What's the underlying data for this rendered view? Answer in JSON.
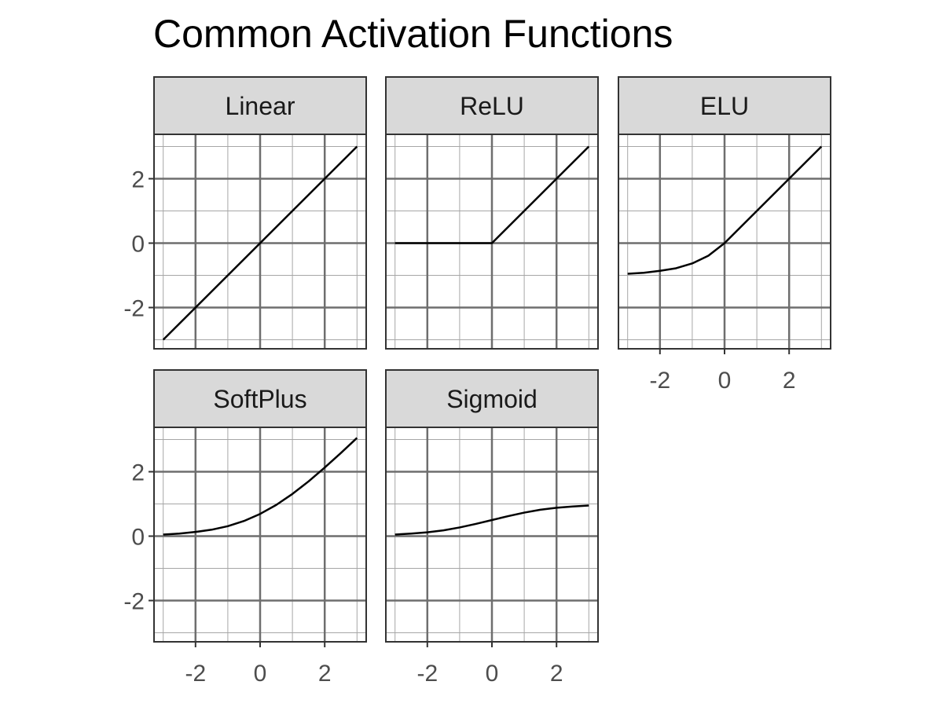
{
  "chart_data": {
    "type": "line",
    "title": "Common Activation Functions",
    "xlabel": "",
    "ylabel": "",
    "xlim": [
      -3,
      3
    ],
    "ylim": [
      -3,
      3
    ],
    "x_ticks": [
      "-2",
      "0",
      "2"
    ],
    "y_ticks": [
      "2",
      "0",
      "-2"
    ],
    "grid": true,
    "legend": "none",
    "line_color": "#000000",
    "panels": [
      {
        "name": "Linear",
        "x": [
          -3,
          -2.5,
          -2,
          -1.5,
          -1,
          -0.5,
          0,
          0.5,
          1,
          1.5,
          2,
          2.5,
          3
        ],
        "y": [
          -3,
          -2.5,
          -2,
          -1.5,
          -1,
          -0.5,
          0,
          0.5,
          1,
          1.5,
          2,
          2.5,
          3
        ]
      },
      {
        "name": "ReLU",
        "x": [
          -3,
          -2.5,
          -2,
          -1.5,
          -1,
          -0.5,
          0,
          0.5,
          1,
          1.5,
          2,
          2.5,
          3
        ],
        "y": [
          0,
          0,
          0,
          0,
          0,
          0,
          0,
          0.5,
          1,
          1.5,
          2,
          2.5,
          3
        ]
      },
      {
        "name": "ELU",
        "x": [
          -3,
          -2.5,
          -2,
          -1.5,
          -1,
          -0.5,
          0,
          0.5,
          1,
          1.5,
          2,
          2.5,
          3
        ],
        "y": [
          -0.95,
          -0.92,
          -0.86,
          -0.78,
          -0.63,
          -0.39,
          0,
          0.5,
          1,
          1.5,
          2,
          2.5,
          3
        ]
      },
      {
        "name": "SoftPlus",
        "x": [
          -3,
          -2.5,
          -2,
          -1.5,
          -1,
          -0.5,
          0,
          0.5,
          1,
          1.5,
          2,
          2.5,
          3
        ],
        "y": [
          0.05,
          0.08,
          0.13,
          0.2,
          0.31,
          0.47,
          0.69,
          0.97,
          1.31,
          1.7,
          2.13,
          2.58,
          3.05
        ]
      },
      {
        "name": "Sigmoid",
        "x": [
          -3,
          -2.5,
          -2,
          -1.5,
          -1,
          -0.5,
          0,
          0.5,
          1,
          1.5,
          2,
          2.5,
          3
        ],
        "y": [
          0.05,
          0.08,
          0.12,
          0.18,
          0.27,
          0.38,
          0.5,
          0.62,
          0.73,
          0.82,
          0.88,
          0.92,
          0.95
        ]
      }
    ]
  }
}
